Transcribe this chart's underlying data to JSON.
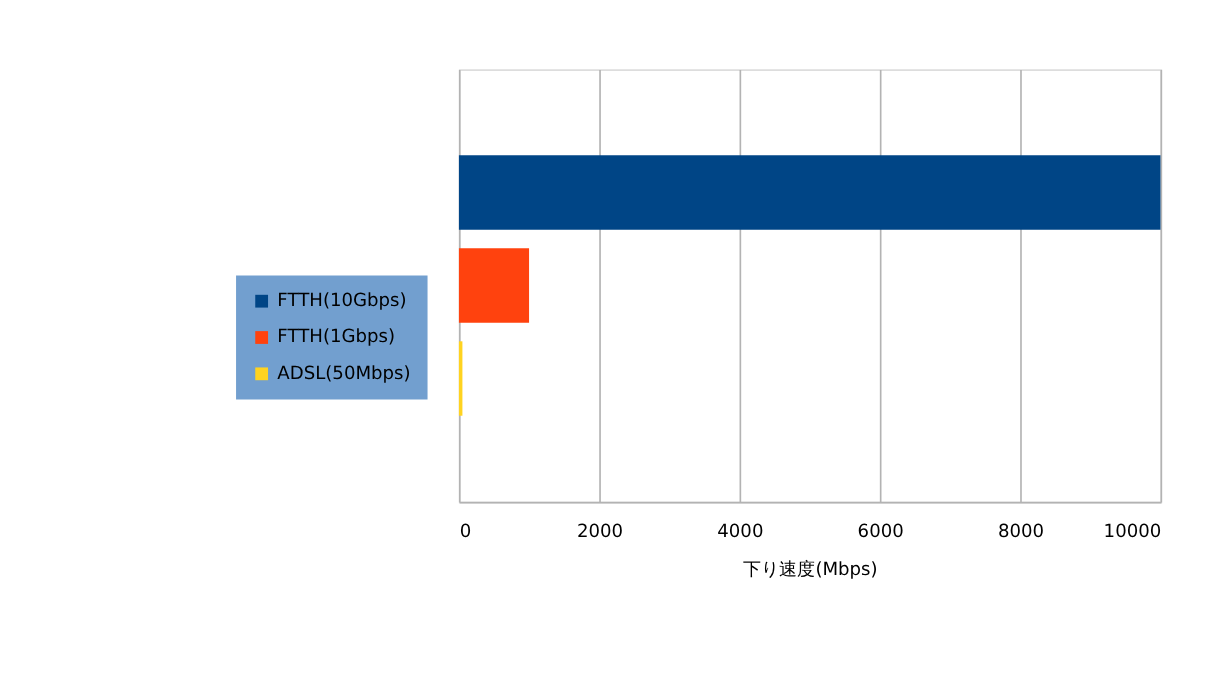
{
  "chart_data": {
    "type": "bar",
    "orientation": "horizontal",
    "categories": [
      null
    ],
    "series": [
      {
        "name": "FTTH(10Gbps)",
        "color": "#004586",
        "values": [
          10000
        ]
      },
      {
        "name": "FTTH(1Gbps)",
        "color": "#ff420e",
        "values": [
          1000
        ]
      },
      {
        "name": "ADSL(50Mbps)",
        "color": "#ffd320",
        "values": [
          50
        ]
      }
    ],
    "xlabel": "下り速度(Mbps)",
    "xlim": [
      0,
      10000
    ],
    "xticks": [
      0,
      2000,
      4000,
      6000,
      8000,
      10000
    ],
    "grid": "x",
    "legend": "left"
  }
}
